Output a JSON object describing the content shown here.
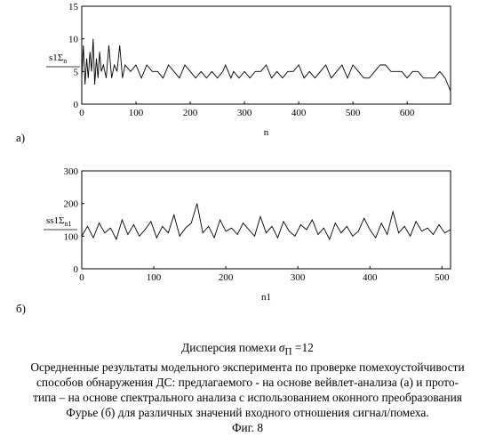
{
  "chart_data": [
    {
      "type": "line",
      "panel_label": "а)",
      "xlabel": "n",
      "ylabel": "s1Σ_n",
      "xlim": [
        0,
        680
      ],
      "ylim": [
        0,
        15
      ],
      "xticks": [
        "0",
        "100",
        "200",
        "300",
        "400",
        "500",
        "600"
      ],
      "yticks": [
        "0",
        "5",
        "10",
        "15"
      ],
      "grid": false,
      "series": [
        {
          "x": [
            0,
            3,
            6,
            9,
            12,
            15,
            18,
            21,
            24,
            27,
            30,
            33,
            36,
            40,
            45,
            50,
            55,
            60,
            65,
            70,
            75,
            80,
            90,
            100,
            110,
            120,
            130,
            140,
            150,
            160,
            170,
            180,
            190,
            200,
            210,
            220,
            230,
            240,
            250,
            260,
            265,
            270,
            275,
            280,
            290,
            300,
            310,
            320,
            330,
            340,
            350,
            360,
            370,
            380,
            390,
            400,
            410,
            420,
            430,
            440,
            450,
            460,
            470,
            480,
            490,
            500,
            510,
            520,
            530,
            540,
            550,
            560,
            570,
            580,
            590,
            600,
            610,
            620,
            630,
            640,
            650,
            660,
            670,
            675,
            680
          ],
          "y": [
            4,
            9,
            3,
            7,
            4,
            8,
            5,
            10,
            3,
            7,
            4,
            8,
            5,
            6,
            4,
            9,
            4,
            6,
            5,
            9,
            4,
            6,
            5,
            6,
            4,
            6,
            5,
            5,
            4,
            6,
            5,
            4,
            6,
            5,
            4,
            5,
            4,
            5,
            4,
            5,
            6,
            5,
            4,
            5,
            4,
            5,
            4,
            5,
            5,
            6,
            4,
            5,
            4,
            5,
            5,
            6,
            4,
            5,
            4,
            5,
            6,
            4,
            5,
            6,
            4,
            6,
            5,
            4,
            4,
            5,
            6,
            6,
            5,
            5,
            5,
            4,
            5,
            5,
            4,
            4,
            4,
            5,
            4,
            3,
            2
          ]
        }
      ]
    },
    {
      "type": "line",
      "panel_label": "б)",
      "xlabel": "n1",
      "ylabel": "ss1Σ_n1",
      "xlim": [
        0,
        512
      ],
      "ylim": [
        0,
        300
      ],
      "xticks": [
        "0",
        "100",
        "200",
        "300",
        "400",
        "500"
      ],
      "yticks": [
        "0",
        "100",
        "200",
        "300"
      ],
      "grid": false,
      "series": [
        {
          "x": [
            0,
            8,
            16,
            24,
            32,
            40,
            48,
            56,
            64,
            72,
            80,
            88,
            96,
            104,
            112,
            120,
            128,
            136,
            144,
            152,
            160,
            168,
            176,
            184,
            192,
            200,
            208,
            216,
            224,
            232,
            240,
            248,
            256,
            264,
            272,
            280,
            288,
            296,
            304,
            312,
            320,
            328,
            336,
            344,
            352,
            360,
            368,
            376,
            384,
            392,
            400,
            408,
            416,
            424,
            432,
            440,
            448,
            456,
            464,
            472,
            480,
            488,
            496,
            504,
            512
          ],
          "y": [
            100,
            130,
            95,
            140,
            110,
            125,
            90,
            150,
            105,
            135,
            100,
            120,
            145,
            95,
            130,
            110,
            165,
            100,
            125,
            140,
            200,
            110,
            130,
            95,
            150,
            115,
            125,
            105,
            140,
            120,
            100,
            160,
            110,
            130,
            95,
            145,
            115,
            100,
            135,
            120,
            150,
            105,
            125,
            90,
            140,
            110,
            130,
            100,
            115,
            155,
            120,
            95,
            140,
            105,
            175,
            110,
            130,
            100,
            145,
            115,
            125,
            105,
            135,
            110,
            120
          ]
        }
      ]
    }
  ],
  "caption": {
    "variance_text": "Дисперсия помехи ",
    "variance_symbol": "σ",
    "variance_subscript": "П",
    "variance_value": " =12",
    "lines": [
      "Осредненные результаты модельного эксперимента по проверке помехоустойчивости",
      "способов обнаружения ДС: предлагаемого - на основе вейвлет-анализа (а) и прото-",
      "типа – на основе спектрального анализа с использованием оконного преобразования",
      "Фурье (б) для различных значений входного отношения сигнал/помеха."
    ],
    "figure_label": "Фиг. 8"
  }
}
